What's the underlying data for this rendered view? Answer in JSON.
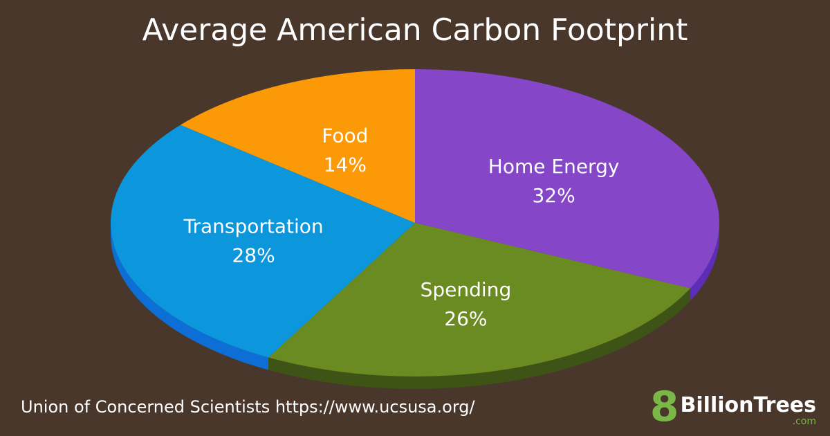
{
  "chart_data": {
    "type": "pie",
    "title": "Average American Carbon Footprint",
    "slices": [
      {
        "label": "Home Energy",
        "value": 32,
        "display": "32%",
        "color": "#8546c8",
        "side_color": "#5e2db8"
      },
      {
        "label": "Spending",
        "value": 26,
        "display": "26%",
        "color": "#6a8a22",
        "side_color": "#3e5416"
      },
      {
        "label": "Transportation",
        "value": 28,
        "display": "28%",
        "color": "#0c97dc",
        "side_color": "#0d6fd6"
      },
      {
        "label": "Food",
        "value": 14,
        "display": "14%",
        "color": "#fb9a06",
        "side_color": "#d47f00"
      }
    ],
    "legend": "none",
    "grid": false
  },
  "source": "Union of Concerned Scientists https://www.ucsusa.org/",
  "logo": {
    "mark": "8",
    "name": "BillionTrees",
    "tld": ".com",
    "color": "#7ab648"
  }
}
